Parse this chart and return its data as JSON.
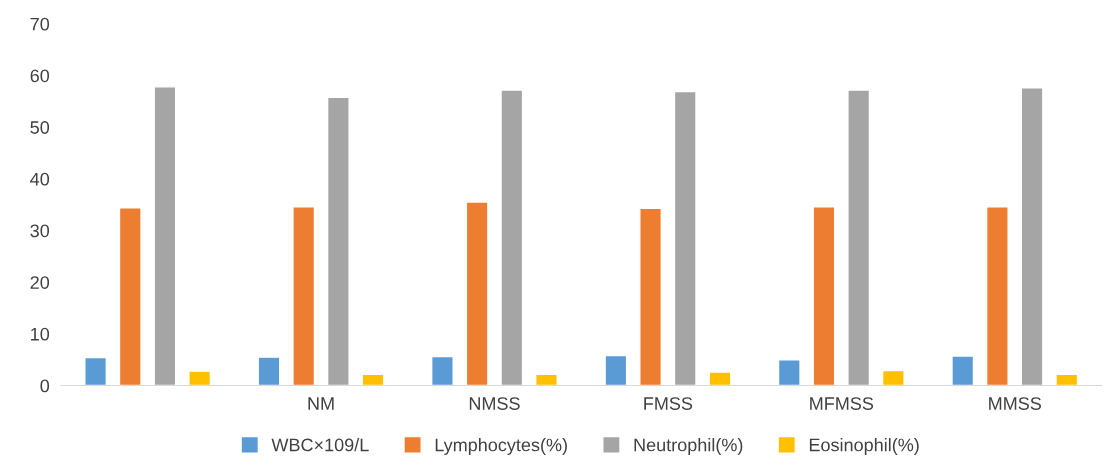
{
  "chart_data": {
    "type": "bar",
    "categories": [
      null,
      "NM",
      "NMSS",
      "FMSS",
      "MFMSS",
      "MMSS"
    ],
    "series": [
      {
        "name": "WBC×109/L",
        "color": "#5b9bd5",
        "values": [
          5.4,
          5.5,
          5.6,
          5.8,
          5.0,
          5.7
        ]
      },
      {
        "name": "Lymphocytes(%)",
        "color": "#ed7d31",
        "values": [
          34.4,
          34.6,
          35.5,
          34.3,
          34.6,
          34.6
        ]
      },
      {
        "name": "Neutrophil(%)",
        "color": "#a5a5a5",
        "values": [
          57.8,
          55.8,
          57.2,
          56.9,
          57.2,
          57.6
        ]
      },
      {
        "name": "Eosinophil(%)",
        "color": "#ffc000",
        "values": [
          2.8,
          2.2,
          2.2,
          2.6,
          2.9,
          2.2
        ]
      }
    ],
    "ylim": [
      0,
      70
    ],
    "yticks": [
      0,
      10,
      20,
      30,
      40,
      50,
      60,
      70
    ],
    "grid": false,
    "legend": "bottom"
  }
}
